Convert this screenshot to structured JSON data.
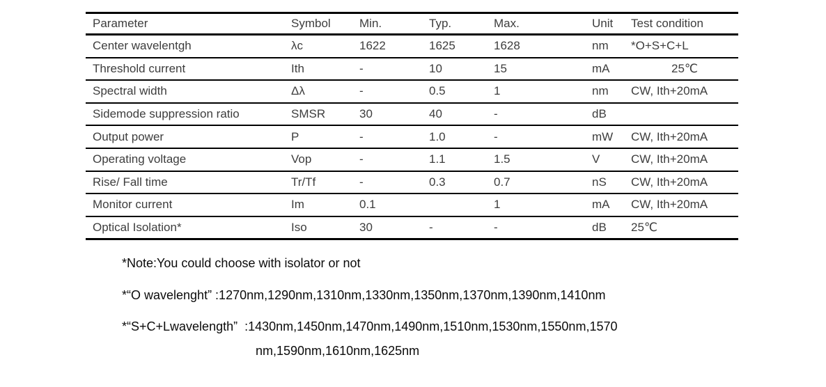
{
  "table": {
    "columns": [
      "Parameter",
      "Symbol",
      "Min.",
      "Typ.",
      "Max.",
      "Unit",
      "Test condition"
    ],
    "rows": [
      [
        "Center wavelentgh",
        "λc",
        "1622",
        "1625",
        "1628",
        "nm",
        "*O+S+C+L"
      ],
      [
        "Threshold current",
        "Ith",
        "-",
        "10",
        "15",
        "mA",
        "25℃"
      ],
      [
        "Spectral width",
        "Δλ",
        "-",
        "0.5",
        "1",
        "nm",
        "CW, Ith+20mA"
      ],
      [
        "Sidemode suppression ratio",
        "SMSR",
        "30",
        "40",
        "-",
        "dB",
        ""
      ],
      [
        "Output power",
        "P",
        "-",
        "1.0",
        "-",
        "mW",
        "CW, Ith+20mA"
      ],
      [
        "Operating voltage",
        "Vop",
        "-",
        "1.1",
        "1.5",
        "V",
        "CW, Ith+20mA"
      ],
      [
        "Rise/ Fall time",
        "Tr/Tf",
        "-",
        "0.3",
        "0.7",
        "nS",
        "CW, Ith+20mA"
      ],
      [
        "Monitor current",
        "Im",
        "0.1",
        "",
        "1",
        "mA",
        "CW, Ith+20mA"
      ],
      [
        "Optical Isolation*",
        "Iso",
        "30",
        "-",
        "-",
        "dB",
        "25℃"
      ]
    ]
  },
  "notes": {
    "note1": "*Note:You could choose with isolator or not",
    "note2": "*“O wavelenght” :1270nm,1290nm,1310nm,1330nm,1350nm,1370nm,1390nm,1410nm",
    "note3_line1": "*“S+C+Lwavelength”  :1430nm,1450nm,1470nm,1490nm,1510nm,1530nm,1550nm,1570",
    "note3_line2": "nm,1590nm,1610nm,1625nm"
  },
  "colors": {
    "table_text": "#3d3d3d",
    "note_text": "#0b0b0b",
    "border": "#000000",
    "background": "#ffffff"
  }
}
